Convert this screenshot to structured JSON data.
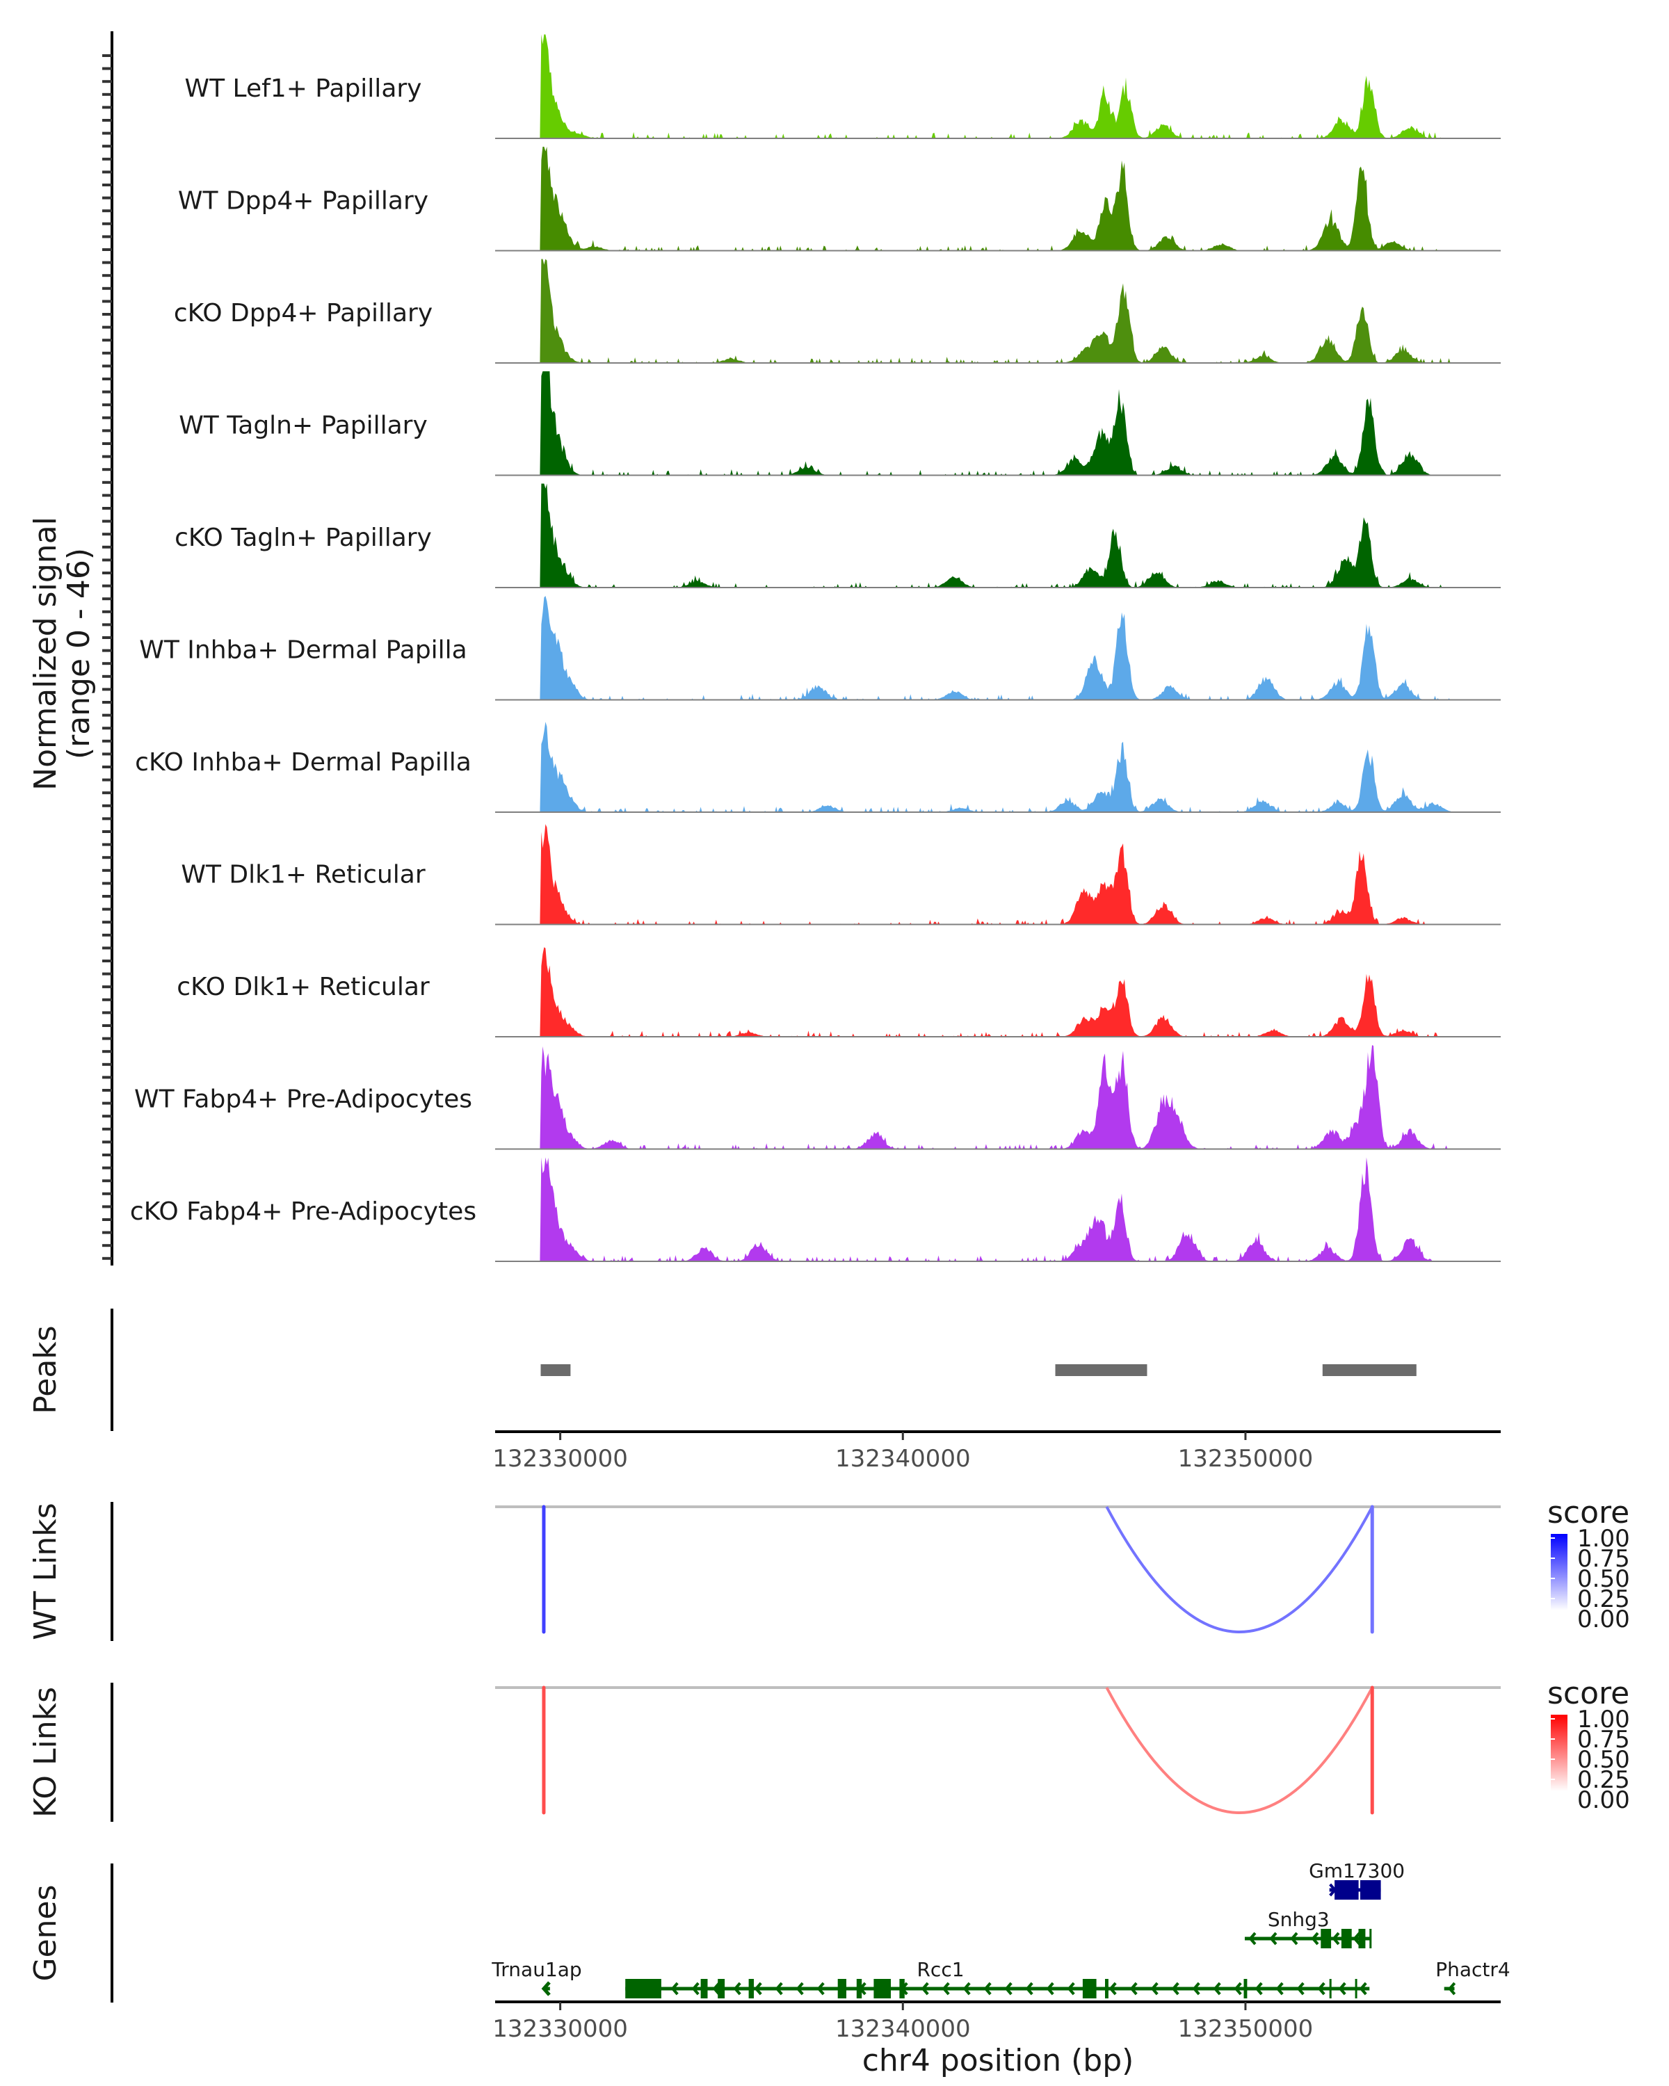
{
  "chart_data": {
    "type": "area",
    "title": "",
    "region": {
      "chromosome": "chr4",
      "start": 132328100,
      "end": 132357450
    },
    "xlabel": "chr4 position (bp)",
    "x_ticks": [
      132330000,
      132340000,
      132350000
    ],
    "x_tick_labels": [
      "132330000",
      "132340000",
      "132350000"
    ],
    "signal_ylabel": "Normalized signal",
    "signal_ylabel_sub": "(range 0 - 46)",
    "ylim": [
      0,
      46
    ],
    "grid": false,
    "tracks": [
      {
        "name": "WT Lef1+ Papillary",
        "color": "#66CC00",
        "peaks": [
          [
            132329500,
            43
          ],
          [
            132329750,
            11
          ],
          [
            132330000,
            4
          ],
          [
            132330500,
            2
          ],
          [
            132345200,
            8
          ],
          [
            132345900,
            21
          ],
          [
            132346500,
            24
          ],
          [
            132347600,
            6
          ],
          [
            132352800,
            8
          ],
          [
            132353600,
            28
          ],
          [
            132354800,
            5
          ]
        ]
      },
      {
        "name": "WT Dpp4+ Papillary",
        "color": "#468C00",
        "peaks": [
          [
            132329500,
            42
          ],
          [
            132329750,
            15
          ],
          [
            132330050,
            10
          ],
          [
            132331000,
            2
          ],
          [
            132345200,
            10
          ],
          [
            132345900,
            22
          ],
          [
            132346400,
            36
          ],
          [
            132347700,
            6
          ],
          [
            132349300,
            3
          ],
          [
            132352500,
            14
          ],
          [
            132353400,
            36
          ],
          [
            132354300,
            4
          ]
        ]
      },
      {
        "name": "cKO Dpp4+ Papillary",
        "color": "#4E8F0E",
        "peaks": [
          [
            132329500,
            40
          ],
          [
            132329750,
            14
          ],
          [
            132330100,
            3
          ],
          [
            132335000,
            2
          ],
          [
            132345300,
            5
          ],
          [
            132345800,
            14
          ],
          [
            132346450,
            35
          ],
          [
            132347600,
            7
          ],
          [
            132350500,
            3
          ],
          [
            132352400,
            11
          ],
          [
            132353400,
            27
          ],
          [
            132354600,
            6
          ]
        ]
      },
      {
        "name": "WT Tagln+ Papillary",
        "color": "#006400",
        "peaks": [
          [
            132329500,
            46
          ],
          [
            132329700,
            18
          ],
          [
            132330000,
            8
          ],
          [
            132337200,
            4
          ],
          [
            132345000,
            7
          ],
          [
            132345800,
            19
          ],
          [
            132346350,
            34
          ],
          [
            132347900,
            4
          ],
          [
            132352600,
            9
          ],
          [
            132353600,
            37
          ],
          [
            132354800,
            10
          ]
        ]
      },
      {
        "name": "cKO Tagln+ Papillary",
        "color": "#006400",
        "peaks": [
          [
            132329500,
            42
          ],
          [
            132329750,
            15
          ],
          [
            132330100,
            6
          ],
          [
            132334000,
            3
          ],
          [
            132341500,
            5
          ],
          [
            132345500,
            9
          ],
          [
            132346200,
            26
          ],
          [
            132347400,
            7
          ],
          [
            132349200,
            3
          ],
          [
            132352900,
            12
          ],
          [
            132353500,
            31
          ],
          [
            132354800,
            4
          ]
        ]
      },
      {
        "name": "WT Inhba+ Dermal Papilla",
        "color": "#5DA9E9",
        "peaks": [
          [
            132329500,
            42
          ],
          [
            132329850,
            24
          ],
          [
            132330200,
            10
          ],
          [
            132337500,
            6
          ],
          [
            132341500,
            4
          ],
          [
            132345600,
            18
          ],
          [
            132346400,
            40
          ],
          [
            132347800,
            6
          ],
          [
            132350600,
            10
          ],
          [
            132352700,
            8
          ],
          [
            132353600,
            35
          ],
          [
            132354600,
            7
          ]
        ]
      },
      {
        "name": "cKO Inhba+ Dermal Papilla",
        "color": "#5DA9E9",
        "peaks": [
          [
            132329500,
            34
          ],
          [
            132329850,
            14
          ],
          [
            132330200,
            6
          ],
          [
            132337800,
            3
          ],
          [
            132341700,
            2
          ],
          [
            132344800,
            5
          ],
          [
            132345800,
            10
          ],
          [
            132346400,
            28
          ],
          [
            132347500,
            6
          ],
          [
            132350500,
            5
          ],
          [
            132352700,
            4
          ],
          [
            132353600,
            27
          ],
          [
            132354600,
            8
          ],
          [
            132355500,
            4
          ]
        ]
      },
      {
        "name": "WT Dlk1+ Reticular",
        "color": "#FF2A2A",
        "peaks": [
          [
            132329500,
            34
          ],
          [
            132329750,
            13
          ],
          [
            132330050,
            5
          ],
          [
            132345300,
            15
          ],
          [
            132345900,
            17
          ],
          [
            132346400,
            34
          ],
          [
            132347600,
            9
          ],
          [
            132350600,
            3
          ],
          [
            132352800,
            6
          ],
          [
            132353400,
            32
          ],
          [
            132354600,
            3
          ]
        ]
      },
      {
        "name": "cKO Dlk1+ Reticular",
        "color": "#FF2A2A",
        "peaks": [
          [
            132329500,
            35
          ],
          [
            132329750,
            14
          ],
          [
            132330200,
            5
          ],
          [
            132335500,
            2
          ],
          [
            132345300,
            8
          ],
          [
            132345900,
            12
          ],
          [
            132346400,
            26
          ],
          [
            132347600,
            9
          ],
          [
            132350800,
            3
          ],
          [
            132352800,
            8
          ],
          [
            132353600,
            27
          ],
          [
            132354600,
            3
          ]
        ]
      },
      {
        "name": "WT Fabp4+ Pre-Adipocytes",
        "color": "#B23AEE",
        "peaks": [
          [
            132329500,
            39
          ],
          [
            132329850,
            22
          ],
          [
            132330200,
            8
          ],
          [
            132331500,
            4
          ],
          [
            132339200,
            7
          ],
          [
            132345300,
            9
          ],
          [
            132345900,
            38
          ],
          [
            132346400,
            40
          ],
          [
            132347600,
            19
          ],
          [
            132348000,
            12
          ],
          [
            132352500,
            8
          ],
          [
            132353300,
            12
          ],
          [
            132353700,
            46
          ],
          [
            132354800,
            8
          ]
        ]
      },
      {
        "name": "cKO Fabp4+ Pre-Adipocytes",
        "color": "#B23AEE",
        "peaks": [
          [
            132329500,
            41
          ],
          [
            132329800,
            20
          ],
          [
            132330300,
            6
          ],
          [
            132334200,
            6
          ],
          [
            132335800,
            8
          ],
          [
            132345200,
            7
          ],
          [
            132345700,
            18
          ],
          [
            132346350,
            28
          ],
          [
            132348300,
            13
          ],
          [
            132350300,
            10
          ],
          [
            132352400,
            6
          ],
          [
            132353500,
            44
          ],
          [
            132354800,
            10
          ]
        ]
      }
    ],
    "peaks_track": {
      "name": "Peaks",
      "color": "#6B6B6B",
      "ranges": [
        [
          132329430,
          132330300
        ],
        [
          132344450,
          132347130
        ],
        [
          132352250,
          132354990
        ]
      ]
    },
    "links": [
      {
        "name": "WT Links",
        "legend_title": "score",
        "scale_colors": [
          "#FFFFFF",
          "#0000FF"
        ],
        "legend_ticks": [
          "1.00",
          "0.75",
          "0.50",
          "0.25",
          "0.00"
        ],
        "arcs": [
          {
            "start": 132329520,
            "end": 132329520,
            "score": 0.75
          },
          {
            "start": 132345950,
            "end": 132353700,
            "score": 0.55
          },
          {
            "start": 132353700,
            "end": 132353700,
            "score": 0.55
          }
        ]
      },
      {
        "name": "KO Links",
        "legend_title": "score",
        "scale_colors": [
          "#FFFFFF",
          "#FF0000"
        ],
        "legend_ticks": [
          "1.00",
          "0.75",
          "0.50",
          "0.25",
          "0.00"
        ],
        "arcs": [
          {
            "start": 132329520,
            "end": 132329520,
            "score": 0.7
          },
          {
            "start": 132345950,
            "end": 132353700,
            "score": 0.5
          },
          {
            "start": 132353700,
            "end": 132353700,
            "score": 0.7
          }
        ]
      }
    ],
    "genes_track": {
      "name": "Genes",
      "genes": [
        {
          "name": "Gm17300",
          "start": 132352450,
          "end": 132353950,
          "strand": "+",
          "row": 0,
          "color": "#00008B",
          "exons": [
            [
              132352600,
              132353300
            ],
            [
              132353350,
              132353950
            ]
          ]
        },
        {
          "name": "Snhg3",
          "start": 132349980,
          "end": 132353650,
          "strand": "-",
          "row": 1,
          "color": "#006400",
          "exons": [
            [
              132352200,
              132352500
            ],
            [
              132352800,
              132353100
            ],
            [
              132353300,
              132353500
            ],
            [
              132353620,
              132353650
            ]
          ]
        },
        {
          "name": "Trnau1ap",
          "start": 132329520,
          "end": 132329700,
          "strand": "-",
          "row": 2,
          "color": "#006400",
          "exons": []
        },
        {
          "name": "Rcc1",
          "start": 132331900,
          "end": 132353620,
          "strand": "-",
          "row": 2,
          "color": "#006400",
          "exons": [
            [
              132331900,
              132332950
            ],
            [
              132334100,
              132334300
            ],
            [
              132334600,
              132334800
            ],
            [
              132335500,
              132335650
            ],
            [
              132338100,
              132338350
            ],
            [
              132338650,
              132338800
            ],
            [
              132339150,
              132339650
            ],
            [
              132339900,
              132340050
            ],
            [
              132345250,
              132345650
            ],
            [
              132345900,
              132346000
            ],
            [
              132349950,
              132350050
            ],
            [
              132352450,
              132352500
            ],
            [
              132353200,
              132353250
            ]
          ]
        },
        {
          "name": "Phactr4",
          "start": 132355800,
          "end": 132356100,
          "strand": "-",
          "row": 2,
          "color": "#006400",
          "exons": []
        }
      ]
    }
  }
}
